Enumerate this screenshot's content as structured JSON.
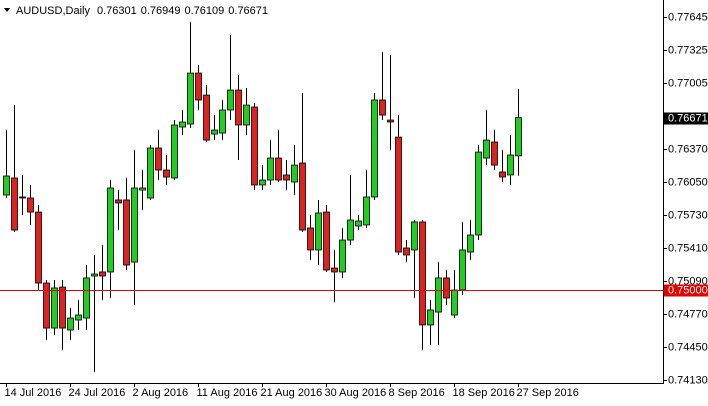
{
  "chart_data": {
    "type": "candlestick",
    "title": "AUDUSD,Daily",
    "categories": [
      "14 Jul 2016",
      null,
      null,
      null,
      null,
      null,
      null,
      null,
      "24 Jul 2016",
      null,
      null,
      null,
      null,
      null,
      null,
      null,
      "2 Aug 2016",
      null,
      null,
      null,
      null,
      null,
      null,
      null,
      "11 Aug 2016",
      null,
      null,
      null,
      null,
      null,
      null,
      null,
      "21 Aug 2016",
      null,
      null,
      null,
      null,
      null,
      null,
      null,
      "30 Aug 2016",
      null,
      null,
      null,
      null,
      null,
      null,
      null,
      "8 Sep 2016",
      null,
      null,
      null,
      null,
      null,
      null,
      null,
      "18 Sep 2016",
      null,
      null,
      null,
      null,
      null,
      null,
      null,
      "27 Sep 2016"
    ],
    "open": [
      0.75922,
      0.76087,
      0.75903,
      0.75893,
      0.75757,
      0.7507,
      0.74634,
      0.75031,
      0.74615,
      0.74712,
      0.74731,
      0.75138,
      0.75177,
      0.75177,
      0.75874,
      0.75874,
      0.75273,
      0.7597,
      0.75893,
      0.76377,
      0.76164,
      0.76087,
      0.7658,
      0.76609,
      0.77103,
      0.7689,
      0.76512,
      0.76522,
      0.76745,
      0.76938,
      0.766,
      0.76774,
      0.76019,
      0.76067,
      0.7628,
      0.76116,
      0.76048,
      0.76232,
      0.75603,
      0.7539,
      0.75757,
      0.75215,
      0.75177,
      0.75486,
      0.75622,
      0.75632,
      0.75903,
      0.76842,
      0.76648,
      0.76483,
      0.75409,
      0.7539,
      0.75661,
      0.74664,
      0.74789,
      0.75119,
      0.7476,
      0.75002,
      0.7537,
      0.75535,
      0.7628,
      0.76435,
      0.76145,
      0.76116,
      0.76301
    ],
    "high": [
      0.76551,
      0.76793,
      0.76116,
      0.76019,
      0.75825,
      0.75099,
      0.75099,
      0.75099,
      0.74828,
      0.74906,
      0.75244,
      0.75341,
      0.75438,
      0.76067,
      0.7597,
      0.76087,
      0.76358,
      0.76164,
      0.76406,
      0.76551,
      0.76309,
      0.76648,
      0.76745,
      0.77597,
      0.7718,
      0.76987,
      0.76696,
      0.76842,
      0.77471,
      0.77084,
      0.76958,
      0.76813,
      0.76212,
      0.76454,
      0.76551,
      0.76261,
      0.76406,
      0.76909,
      0.75728,
      0.75874,
      0.75825,
      0.7539,
      0.75603,
      0.76116,
      0.75728,
      0.76164,
      0.76909,
      0.77306,
      0.77277,
      0.76696,
      0.75486,
      0.7568,
      0.7568,
      0.74906,
      0.75273,
      0.75196,
      0.75196,
      0.75661,
      0.7568,
      0.76406,
      0.76745,
      0.76551,
      0.76358,
      0.76503,
      0.76949
    ],
    "low": [
      0.75893,
      0.75564,
      0.75728,
      0.75632,
      0.75002,
      0.74518,
      0.74567,
      0.74422,
      0.74518,
      0.74615,
      0.74615,
      0.74209,
      0.74906,
      0.74925,
      0.75583,
      0.75196,
      0.74857,
      0.75777,
      0.75874,
      0.76067,
      0.76019,
      0.76067,
      0.76503,
      0.76571,
      0.76745,
      0.76435,
      0.76454,
      0.76454,
      0.76648,
      0.76261,
      0.76503,
      0.7597,
      0.7597,
      0.76019,
      0.76048,
      0.7597,
      0.75922,
      0.75564,
      0.75293,
      0.75244,
      0.75177,
      0.74886,
      0.75119,
      0.75438,
      0.75583,
      0.75603,
      0.75874,
      0.76648,
      0.76358,
      0.75341,
      0.75273,
      0.74925,
      0.74422,
      0.7447,
      0.7447,
      0.74857,
      0.74731,
      0.74954,
      0.75293,
      0.75486,
      0.76212,
      0.76164,
      0.76048,
      0.76019,
      0.76109
    ],
    "close": [
      0.76106,
      0.75583,
      0.75893,
      0.75757,
      0.7507,
      0.74634,
      0.75022,
      0.74634,
      0.74731,
      0.7476,
      0.75119,
      0.75157,
      0.75138,
      0.7599,
      0.75845,
      0.75244,
      0.7599,
      0.7599,
      0.76377,
      0.76164,
      0.76096,
      0.766,
      0.76629,
      0.77103,
      0.76842,
      0.76454,
      0.76551,
      0.76745,
      0.76938,
      0.766,
      0.76793,
      0.76019,
      0.76067,
      0.7628,
      0.76067,
      0.76067,
      0.76212,
      0.75583,
      0.7539,
      0.75748,
      0.75196,
      0.75177,
      0.75486,
      0.7568,
      0.7567,
      0.75903,
      0.76842,
      0.76696,
      0.76629,
      0.7537,
      0.75341,
      0.75661,
      0.74664,
      0.74809,
      0.75119,
      0.74925,
      0.75002,
      0.7539,
      0.75535,
      0.76338,
      0.76454,
      0.76212,
      0.76096,
      0.76309,
      0.76671
    ],
    "up_color": "#22cc22",
    "down_color": "#dd2222",
    "ylim": [
      0.74102,
      0.7781
    ],
    "yticks": [
      0.77645,
      0.77325,
      0.77005,
      {
        "value": 0.7637,
        "label": "0.76370"
      },
      {
        "value": 0.7605,
        "label": "0.76050"
      },
      {
        "value": 0.7573,
        "label": "0.75730"
      },
      {
        "value": 0.7541,
        "label": "0.75410"
      },
      {
        "value": 0.7509,
        "label": "0.75090"
      },
      {
        "value": 0.7477,
        "label": "0.74770"
      },
      {
        "value": 0.7445,
        "label": "0.74450"
      },
      {
        "value": 0.7413,
        "label": "0.74130"
      }
    ],
    "grid": false,
    "hline": {
      "value": 0.75,
      "label": "0.75000",
      "color": "#e00000"
    }
  }
}
